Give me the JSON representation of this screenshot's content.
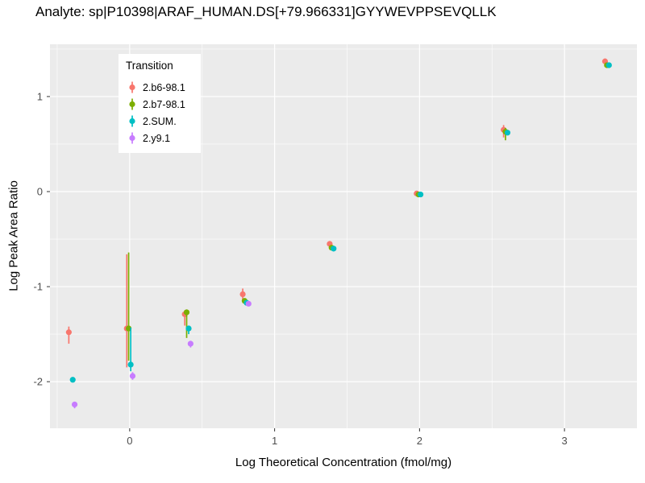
{
  "page": {
    "title": "Analyte: sp|P10398|ARAF_HUMAN.DS[+79.966331]GYYWEVPPSEVQLLK"
  },
  "chart_data": {
    "type": "scatter",
    "title": "Analyte: sp|P10398|ARAF_HUMAN.DS[+79.966331]GYYWEVPPSEVQLLK",
    "xlabel": "Log Theoretical Concentration (fmol/mg)",
    "ylabel": "Log Peak Area Ratio",
    "xlim": [
      -0.55,
      3.5
    ],
    "ylim": [
      -2.49,
      1.55
    ],
    "xticks": [
      0,
      1,
      2,
      3
    ],
    "yticks": [
      -2,
      -1,
      0,
      1
    ],
    "xticks_minor": [
      -0.5,
      0.5,
      1.5,
      2.5
    ],
    "yticks_minor": [
      -1.5,
      -0.5,
      0.5,
      1.5
    ],
    "grid": true,
    "panel_bg": "#EBEBEB",
    "grid_color": "#FFFFFF",
    "tick_color": "#333333",
    "tick_label_color": "#4D4D4D",
    "legend": {
      "title": "Transition",
      "position": "inside-top-left"
    },
    "series": [
      {
        "name": "2.b6-98.1",
        "color": "#F8766D",
        "x_dodge": -0.02,
        "points": [
          {
            "x": -0.4,
            "y": -1.48,
            "lo": -1.6,
            "hi": -1.42
          },
          {
            "x": 0.0,
            "y": -1.44,
            "lo": -1.85,
            "hi": -0.66
          },
          {
            "x": 0.4,
            "y": -1.29,
            "lo": -1.41,
            "hi": -1.25
          },
          {
            "x": 0.8,
            "y": -1.08,
            "lo": -1.15,
            "hi": -1.02
          },
          {
            "x": 1.4,
            "y": -0.55,
            "lo": -0.58,
            "hi": -0.52
          },
          {
            "x": 2.0,
            "y": -0.02,
            "lo": -0.04,
            "hi": -0.01
          },
          {
            "x": 2.6,
            "y": 0.65,
            "lo": 0.57,
            "hi": 0.7
          },
          {
            "x": 3.3,
            "y": 1.37,
            "lo": 1.32,
            "hi": 1.4
          }
        ]
      },
      {
        "name": "2.b7-98.1",
        "color": "#7CAE00",
        "x_dodge": -0.007,
        "points": [
          {
            "x": 0.0,
            "y": -1.44,
            "lo": -1.78,
            "hi": -0.64
          },
          {
            "x": 0.4,
            "y": -1.27,
            "lo": -1.54,
            "hi": -1.24
          },
          {
            "x": 0.8,
            "y": -1.15
          },
          {
            "x": 1.4,
            "y": -0.59
          },
          {
            "x": 2.0,
            "y": -0.03
          },
          {
            "x": 2.6,
            "y": 0.63,
            "lo": 0.54,
            "hi": 0.67
          },
          {
            "x": 3.3,
            "y": 1.33
          }
        ]
      },
      {
        "name": "2.SUM.",
        "color": "#00BFC4",
        "x_dodge": 0.007,
        "points": [
          {
            "x": -0.4,
            "y": -1.98
          },
          {
            "x": 0.0,
            "y": -1.82,
            "lo": -1.89,
            "hi": -1.43
          },
          {
            "x": 0.4,
            "y": -1.44,
            "lo": -1.5,
            "hi": -1.41
          },
          {
            "x": 0.8,
            "y": -1.17
          },
          {
            "x": 1.4,
            "y": -0.6
          },
          {
            "x": 2.0,
            "y": -0.03
          },
          {
            "x": 2.6,
            "y": 0.62
          },
          {
            "x": 3.3,
            "y": 1.33
          }
        ]
      },
      {
        "name": "2.y9.1",
        "color": "#C77CFF",
        "x_dodge": 0.02,
        "points": [
          {
            "x": -0.4,
            "y": -2.24,
            "lo": -2.28,
            "hi": -2.21
          },
          {
            "x": 0.0,
            "y": -1.94,
            "lo": -1.98,
            "hi": -1.9
          },
          {
            "x": 0.4,
            "y": -1.6,
            "lo": -1.64,
            "hi": -1.57
          },
          {
            "x": 0.8,
            "y": -1.18
          }
        ]
      }
    ]
  }
}
